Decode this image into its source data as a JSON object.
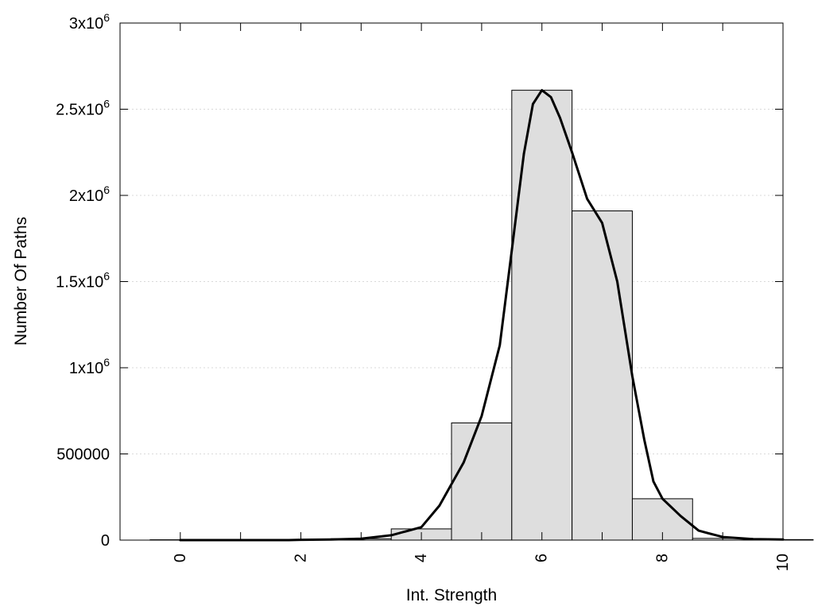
{
  "chart_data": {
    "type": "bar",
    "xlabel": "Int. Strength",
    "ylabel": "Number Of Paths",
    "xlim": [
      -1,
      10
    ],
    "ylim": [
      0,
      3000000
    ],
    "grid": "y",
    "x_ticks": [
      {
        "value": 0,
        "label": "0"
      },
      {
        "value": 2,
        "label": "2"
      },
      {
        "value": 4,
        "label": "4"
      },
      {
        "value": 6,
        "label": "6"
      },
      {
        "value": 8,
        "label": "8"
      },
      {
        "value": 10,
        "label": "10"
      }
    ],
    "y_ticks": [
      {
        "value": 0,
        "base": "0",
        "exp": ""
      },
      {
        "value": 500000,
        "base": "500000",
        "exp": ""
      },
      {
        "value": 1000000,
        "base": "1x10",
        "exp": "6"
      },
      {
        "value": 1500000,
        "base": "1.5x10",
        "exp": "6"
      },
      {
        "value": 2000000,
        "base": "2x10",
        "exp": "6"
      },
      {
        "value": 2500000,
        "base": "2.5x10",
        "exp": "6"
      },
      {
        "value": 3000000,
        "base": "3x10",
        "exp": "6"
      }
    ],
    "bars": [
      {
        "x": 0,
        "value": 2000
      },
      {
        "x": 1,
        "value": 2000
      },
      {
        "x": 2,
        "value": 3000
      },
      {
        "x": 3,
        "value": 8000
      },
      {
        "x": 4,
        "value": 65000
      },
      {
        "x": 5,
        "value": 680000
      },
      {
        "x": 6,
        "value": 2610000
      },
      {
        "x": 7,
        "value": 1910000
      },
      {
        "x": 8,
        "value": 240000
      },
      {
        "x": 9,
        "value": 10000
      },
      {
        "x": 10,
        "value": 3000
      }
    ],
    "bar_width": 1,
    "curve": {
      "points": [
        [
          0,
          0
        ],
        [
          1,
          0
        ],
        [
          1.8,
          0
        ],
        [
          2,
          2000
        ],
        [
          2.5,
          3000
        ],
        [
          3,
          8000
        ],
        [
          3.5,
          28000
        ],
        [
          4,
          75000
        ],
        [
          4.3,
          200000
        ],
        [
          4.7,
          450000
        ],
        [
          5,
          720000
        ],
        [
          5.3,
          1130000
        ],
        [
          5.5,
          1680000
        ],
        [
          5.7,
          2240000
        ],
        [
          5.85,
          2530000
        ],
        [
          6,
          2610000
        ],
        [
          6.15,
          2570000
        ],
        [
          6.3,
          2450000
        ],
        [
          6.5,
          2250000
        ],
        [
          6.75,
          1980000
        ],
        [
          7,
          1840000
        ],
        [
          7.25,
          1500000
        ],
        [
          7.5,
          950000
        ],
        [
          7.7,
          580000
        ],
        [
          7.85,
          340000
        ],
        [
          8,
          240000
        ],
        [
          8.3,
          140000
        ],
        [
          8.6,
          55000
        ],
        [
          9,
          18000
        ],
        [
          9.5,
          6000
        ],
        [
          10,
          3000
        ]
      ]
    },
    "colors": {
      "bar_fill": "#dedede",
      "bar_stroke": "#000000",
      "curve": "#000000",
      "grid": "#d9d9d9",
      "axis": "#000000"
    }
  }
}
